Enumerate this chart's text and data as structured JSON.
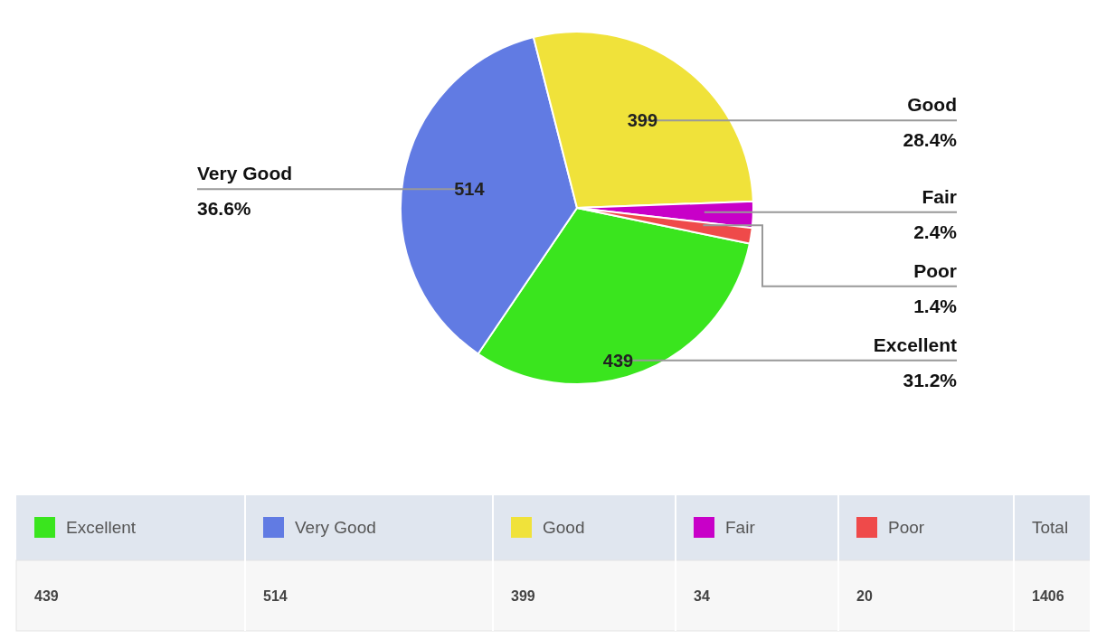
{
  "chart_data": [
    {
      "type": "pie",
      "categories": [
        "Excellent",
        "Very Good",
        "Good",
        "Fair",
        "Poor"
      ],
      "values": [
        439,
        514,
        399,
        34,
        20
      ],
      "colors": [
        "#3ae51e",
        "#617be3",
        "#f0e23a",
        "#c800c8",
        "#ef4a4a"
      ],
      "value_labels": [
        "439",
        "514",
        "399",
        null,
        null
      ],
      "annotations": [
        {
          "text": "31.2%",
          "x": "Excellent"
        },
        {
          "text": "36.6%",
          "x": "Very Good"
        },
        {
          "text": "28.4%",
          "x": "Good"
        },
        {
          "text": "2.4%",
          "x": "Fair"
        },
        {
          "text": "1.4%",
          "x": "Poor"
        }
      ]
    },
    {
      "type": "other",
      "categories": [
        "Excellent",
        "Very Good",
        "Good",
        "Fair",
        "Poor",
        "Total"
      ],
      "values": [
        439,
        514,
        399,
        34,
        20,
        1406
      ],
      "data_labels": true
    }
  ]
}
